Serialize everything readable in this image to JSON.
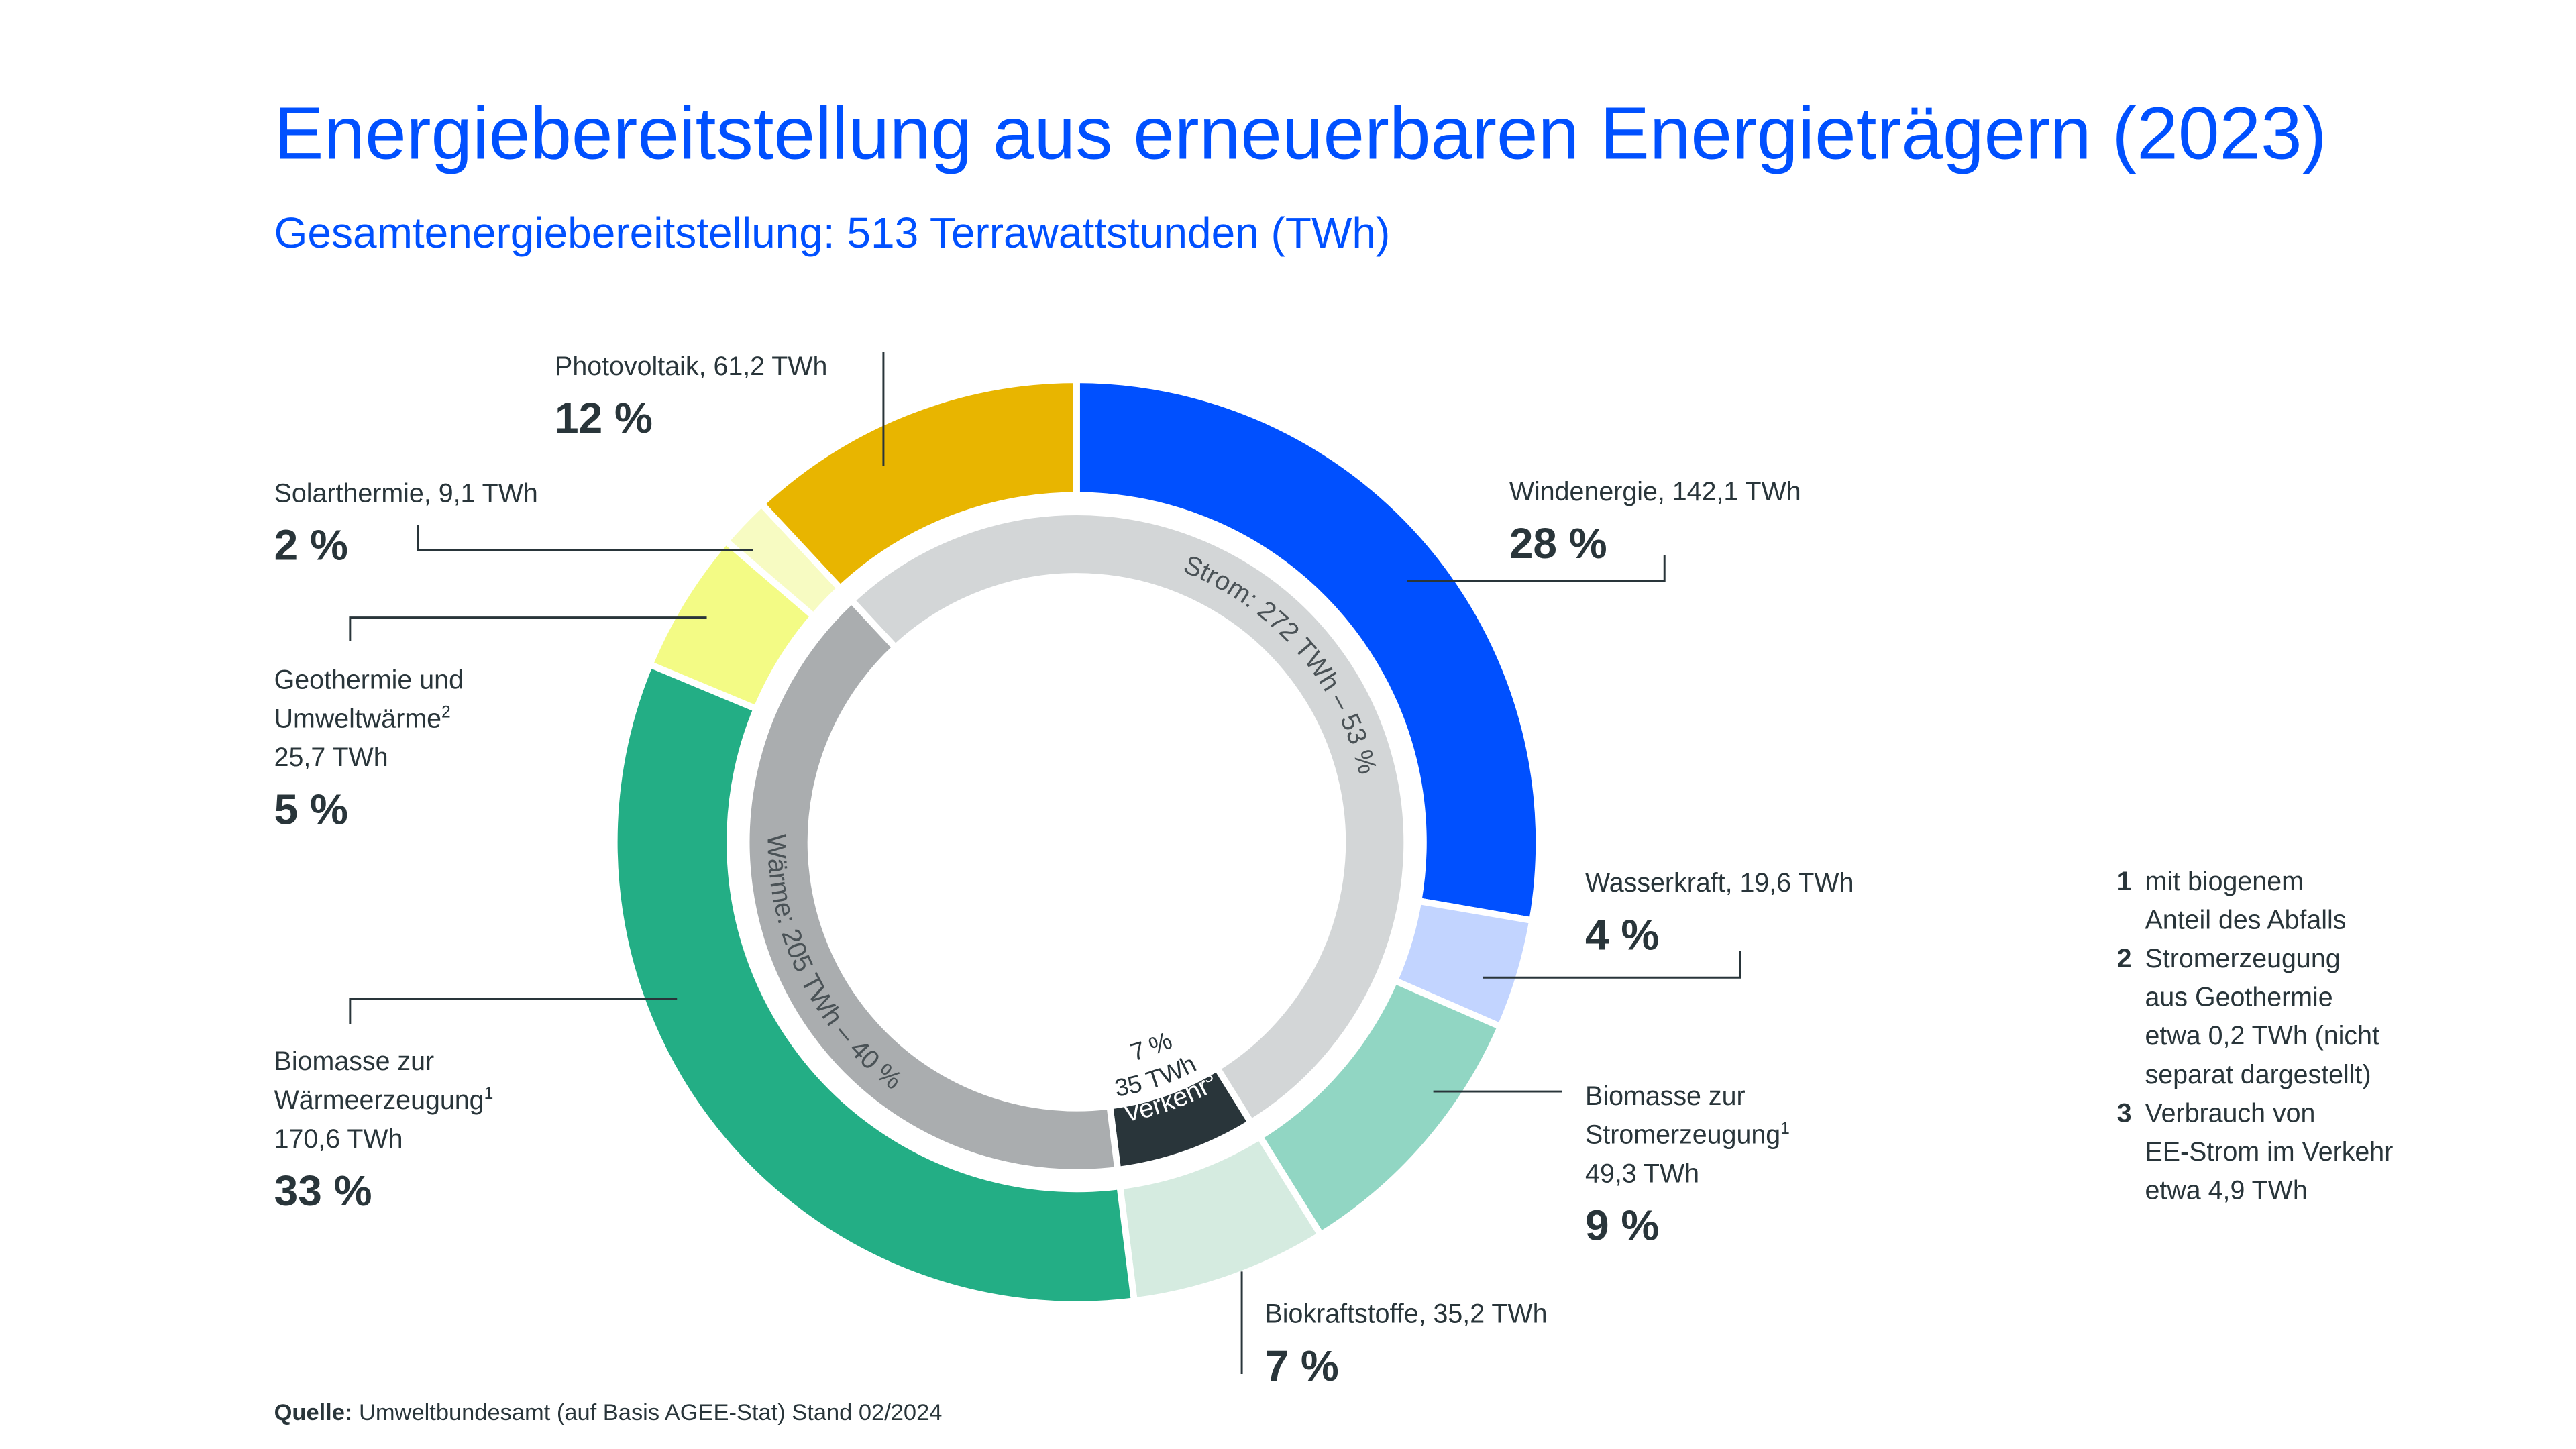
{
  "title": "Energiebereitstellung aus erneuerbaren Energieträgern (2023)",
  "subtitle": "Gesamtenergiebereitstellung: 513 Terrawattstunden (TWh)",
  "source": {
    "label": "Quelle:",
    "text": " Umweltbundesamt (auf Basis AGEE-Stat) Stand 02/2024"
  },
  "footnotes": [
    {
      "num": "1",
      "lines": [
        "mit biogenem",
        "Anteil des Abfalls"
      ]
    },
    {
      "num": "2",
      "lines": [
        "Stromerzeugung",
        "aus Geothermie",
        "etwa 0,2 TWh (nicht",
        "separat dargestellt)"
      ]
    },
    {
      "num": "3",
      "lines": [
        "Verbrauch von",
        "EE-Strom im Verkehr",
        "etwa 4,9 TWh"
      ]
    }
  ],
  "chart_data": {
    "type": "donut",
    "title": "Energiebereitstellung aus erneuerbaren Energieträgern (2023)",
    "total_twh": 513,
    "unit": "TWh",
    "outer": [
      {
        "name_lines": [
          "Windenergie, 142,1 TWh"
        ],
        "sup": "",
        "value": 142.1,
        "percent": 28,
        "percent_text": "28 %",
        "color": "#0050FF"
      },
      {
        "name_lines": [
          "Wasserkraft, 19,6 TWh"
        ],
        "sup": "",
        "value": 19.6,
        "percent": 4,
        "percent_text": "4 %",
        "color": "#C2D4FF"
      },
      {
        "name_lines": [
          "Biomasse zur",
          "Stromerzeugung",
          "49,3 TWh"
        ],
        "sup": "1",
        "value": 49.3,
        "percent": 9,
        "percent_text": "9 %",
        "color": "#91D6C3"
      },
      {
        "name_lines": [
          "Biokraftstoffe, 35,2 TWh"
        ],
        "sup": "",
        "value": 35.2,
        "percent": 7,
        "percent_text": "7 %",
        "color": "#D5EBE0"
      },
      {
        "name_lines": [
          "Biomasse zur",
          "Wärmeerzeugung",
          "170,6 TWh"
        ],
        "sup": "1",
        "value": 170.6,
        "percent": 33,
        "percent_text": "33 %",
        "color": "#23AE85"
      },
      {
        "name_lines": [
          "Geothermie und",
          "Umweltwärme",
          "25,7 TWh"
        ],
        "sup": "2",
        "value": 25.7,
        "percent": 5,
        "percent_text": "5 %",
        "color": "#F3FB85"
      },
      {
        "name_lines": [
          "Solarthermie, 9,1 TWh"
        ],
        "sup": "",
        "value": 9.1,
        "percent": 2,
        "percent_text": "2 %",
        "color": "#F7FBC2"
      },
      {
        "name_lines": [
          "Photovoltaik, 61,2 TWh"
        ],
        "sup": "",
        "value": 61.2,
        "percent": 12,
        "percent_text": "12 %",
        "color": "#E8B500"
      }
    ],
    "inner": [
      {
        "label": "Strom: 272 TWh – 53 %",
        "value": 272,
        "percent": 53,
        "color": "#D3D6D7"
      },
      {
        "label": "Verkehr",
        "sup": "3",
        "value": 35,
        "percent": 7,
        "percent_text": "7 %",
        "value_text": "35 TWh",
        "color": "#29353A"
      },
      {
        "label": "Wärme: 205 TWh – 40 %",
        "value": 205,
        "percent": 40,
        "color": "#AAADAF"
      }
    ]
  }
}
